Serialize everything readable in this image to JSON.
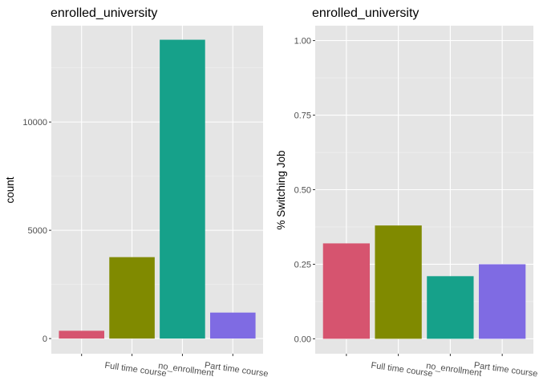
{
  "colors": {
    "panel_bg": "#e5e5e5",
    "grid_major": "#ffffff",
    "grid_minor": "#f0f0f0",
    "tick_text": "#4d4d4d",
    "title_text": "#000000"
  },
  "chart_data": [
    {
      "type": "bar",
      "title": "enrolled_university",
      "xlabel": "",
      "ylabel": "count",
      "categories": [
        "",
        "Full time course",
        "no_enrollment",
        "Part time course"
      ],
      "values": [
        360,
        3760,
        13800,
        1200
      ],
      "colors": [
        "#d6546f",
        "#808a00",
        "#16a18a",
        "#7f6be3"
      ],
      "ylim": [
        -700,
        14450
      ],
      "yticks": [
        0,
        5000,
        10000
      ],
      "ytick_labels": [
        "0",
        "5000",
        "10000"
      ],
      "grid": true,
      "legend": "none"
    },
    {
      "type": "bar",
      "title": "enrolled_university",
      "xlabel": "",
      "ylabel": "% Switching Job",
      "categories": [
        "",
        "Full time course",
        "no_enrollment",
        "Part time course"
      ],
      "values": [
        0.32,
        0.38,
        0.21,
        0.25
      ],
      "colors": [
        "#d6546f",
        "#808a00",
        "#16a18a",
        "#7f6be3"
      ],
      "ylim": [
        -0.05,
        1.05
      ],
      "yticks": [
        0,
        0.25,
        0.5,
        0.75,
        1
      ],
      "ytick_labels": [
        "0.00",
        "0.25",
        "0.50",
        "0.75",
        "1.00"
      ],
      "grid": true,
      "legend": "none"
    }
  ]
}
